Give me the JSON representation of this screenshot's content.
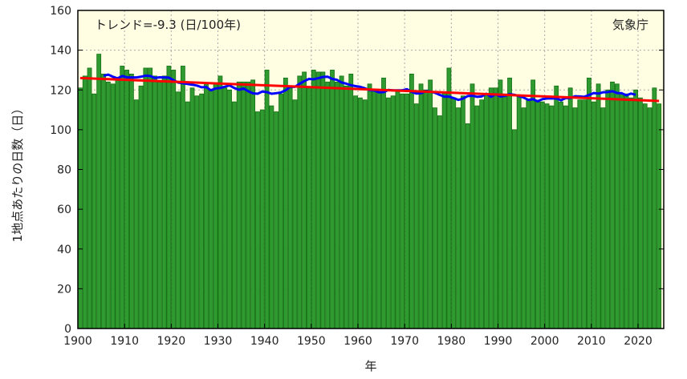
{
  "chart_data": {
    "type": "bar",
    "annotation": "トレンド=-9.3 (日/100年)",
    "source": "気象庁",
    "xlabel": "年",
    "ylabel": "1地点あたりの日数（日）",
    "xlim": [
      1900,
      2025.5
    ],
    "ylim": [
      0,
      160
    ],
    "yticks": [
      0,
      20,
      40,
      60,
      80,
      100,
      120,
      140,
      160
    ],
    "xticks": [
      1900,
      1910,
      1920,
      1930,
      1940,
      1950,
      1960,
      1970,
      1980,
      1990,
      2000,
      2010,
      2020
    ],
    "grid": true,
    "start_year": 1901,
    "values": [
      121,
      127,
      131,
      118,
      138,
      128,
      124,
      123,
      126,
      132,
      130,
      128,
      115,
      122,
      131,
      131,
      127,
      124,
      127,
      132,
      130,
      119,
      132,
      114,
      121,
      117,
      118,
      123,
      120,
      123,
      127,
      121,
      120,
      114,
      124,
      124,
      124,
      125,
      109,
      110,
      130,
      112,
      109,
      118,
      126,
      121,
      115,
      127,
      129,
      121,
      130,
      129,
      129,
      124,
      130,
      124,
      127,
      122,
      128,
      117,
      116,
      115,
      123,
      120,
      119,
      126,
      116,
      117,
      120,
      118,
      118,
      128,
      113,
      123,
      120,
      125,
      111,
      107,
      119,
      131,
      116,
      111,
      117,
      103,
      123,
      112,
      115,
      118,
      121,
      121,
      125,
      118,
      126,
      100,
      117,
      111,
      115,
      125,
      114,
      114,
      113,
      112,
      122,
      114,
      112,
      121,
      111,
      115,
      115,
      126,
      114,
      123,
      111,
      120,
      124,
      123,
      118,
      118,
      116,
      120,
      116,
      113,
      111,
      121,
      113
    ],
    "moving_average_window": 11,
    "trend": {
      "slope_per_100yr": -9.3,
      "start_value": 126.0,
      "start_year": 1901,
      "end_year": 2025
    },
    "colors": {
      "bar": "#2f9a2f",
      "bar_edge": "#157015",
      "moving_average": "#0000ff",
      "trend": "#ff0000",
      "plot_bg": "#fffde2"
    }
  }
}
